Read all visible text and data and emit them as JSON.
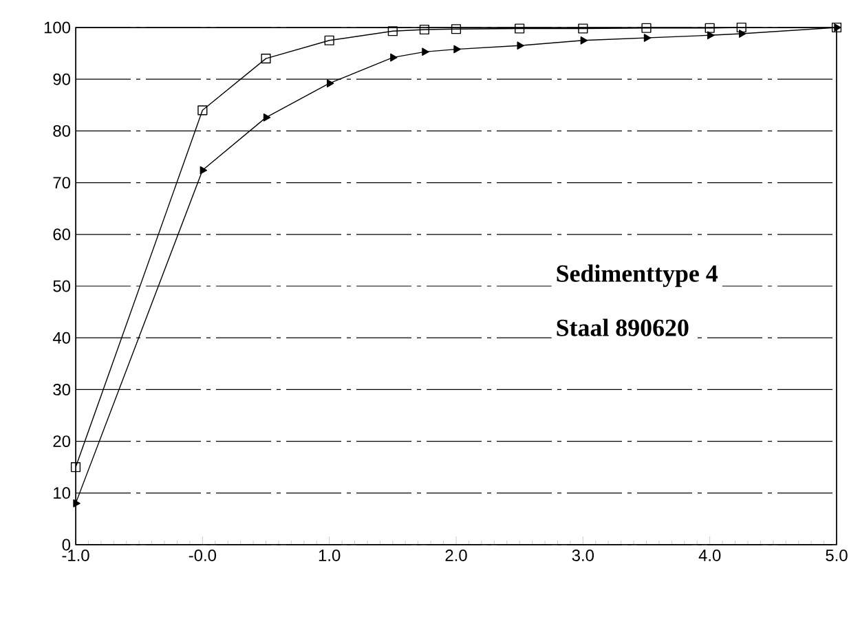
{
  "chart_data": {
    "type": "line",
    "annotations": [
      "Sedimenttype 4",
      "Staal 890620"
    ],
    "x": [
      -1.0,
      0.0,
      0.5,
      1.0,
      1.5,
      1.75,
      2.0,
      2.5,
      3.0,
      3.5,
      4.0,
      4.25,
      5.0
    ],
    "series": [
      {
        "color": "#000000",
        "marker": "square",
        "values": [
          15,
          84,
          94,
          97.5,
          99.3,
          99.6,
          99.7,
          99.8,
          99.8,
          99.9,
          99.9,
          100,
          100
        ]
      },
      {
        "color": "#000000",
        "marker": "triangle",
        "values": [
          8,
          72.4,
          82.6,
          89.2,
          94.2,
          95.3,
          95.8,
          96.5,
          97.5,
          98,
          98.5,
          98.8,
          100
        ]
      }
    ],
    "xlim": [
      -1.0,
      5.0
    ],
    "ylim": [
      0,
      100
    ],
    "xticks": [
      {
        "value": -1.0,
        "label": "-1.0"
      },
      {
        "value": 0.0,
        "label": "-0.0"
      },
      {
        "value": 1.0,
        "label": "1.0"
      },
      {
        "value": 2.0,
        "label": "2.0"
      },
      {
        "value": 3.0,
        "label": "3.0"
      },
      {
        "value": 4.0,
        "label": "4.0"
      },
      {
        "value": 5.0,
        "label": "5.0"
      }
    ],
    "yticks": [
      0,
      10,
      20,
      30,
      40,
      50,
      60,
      70,
      80,
      90,
      100
    ],
    "grid": "y",
    "line_style": "solid"
  }
}
